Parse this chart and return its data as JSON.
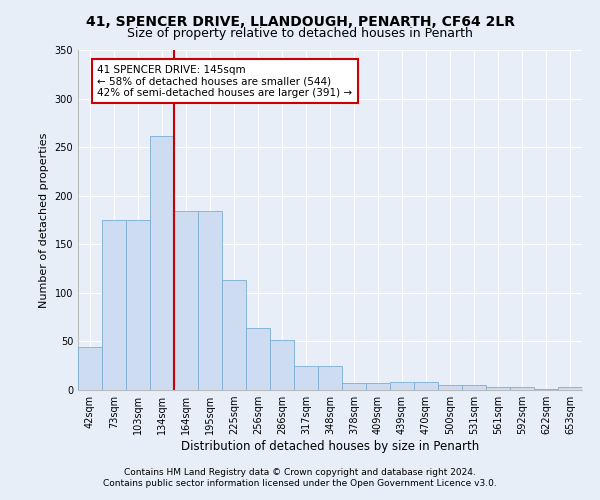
{
  "title1": "41, SPENCER DRIVE, LLANDOUGH, PENARTH, CF64 2LR",
  "title2": "Size of property relative to detached houses in Penarth",
  "xlabel": "Distribution of detached houses by size in Penarth",
  "ylabel": "Number of detached properties",
  "categories": [
    "42sqm",
    "73sqm",
    "103sqm",
    "134sqm",
    "164sqm",
    "195sqm",
    "225sqm",
    "256sqm",
    "286sqm",
    "317sqm",
    "348sqm",
    "378sqm",
    "409sqm",
    "439sqm",
    "470sqm",
    "500sqm",
    "531sqm",
    "561sqm",
    "592sqm",
    "622sqm",
    "653sqm"
  ],
  "bar_values": [
    44,
    175,
    175,
    261,
    184,
    184,
    113,
    64,
    51,
    25,
    25,
    7,
    7,
    8,
    8,
    5,
    5,
    3,
    3,
    1,
    3
  ],
  "bar_color": "#cddcf0",
  "bar_edge_color": "#7bafd4",
  "vline_x": 3.5,
  "vline_color": "#cc0000",
  "annotation_text": "41 SPENCER DRIVE: 145sqm\n← 58% of detached houses are smaller (544)\n42% of semi-detached houses are larger (391) →",
  "annotation_box_color": "#ffffff",
  "annotation_box_edge": "#cc0000",
  "footer1": "Contains HM Land Registry data © Crown copyright and database right 2024.",
  "footer2": "Contains public sector information licensed under the Open Government Licence v3.0.",
  "ylim": [
    0,
    350
  ],
  "yticks": [
    0,
    50,
    100,
    150,
    200,
    250,
    300,
    350
  ],
  "background_color": "#e8eef8",
  "grid_color": "#ffffff",
  "title_fontsize": 10,
  "subtitle_fontsize": 9,
  "axis_label_fontsize": 8,
  "tick_fontsize": 7,
  "annotation_fontsize": 7.5,
  "footer_fontsize": 6.5
}
